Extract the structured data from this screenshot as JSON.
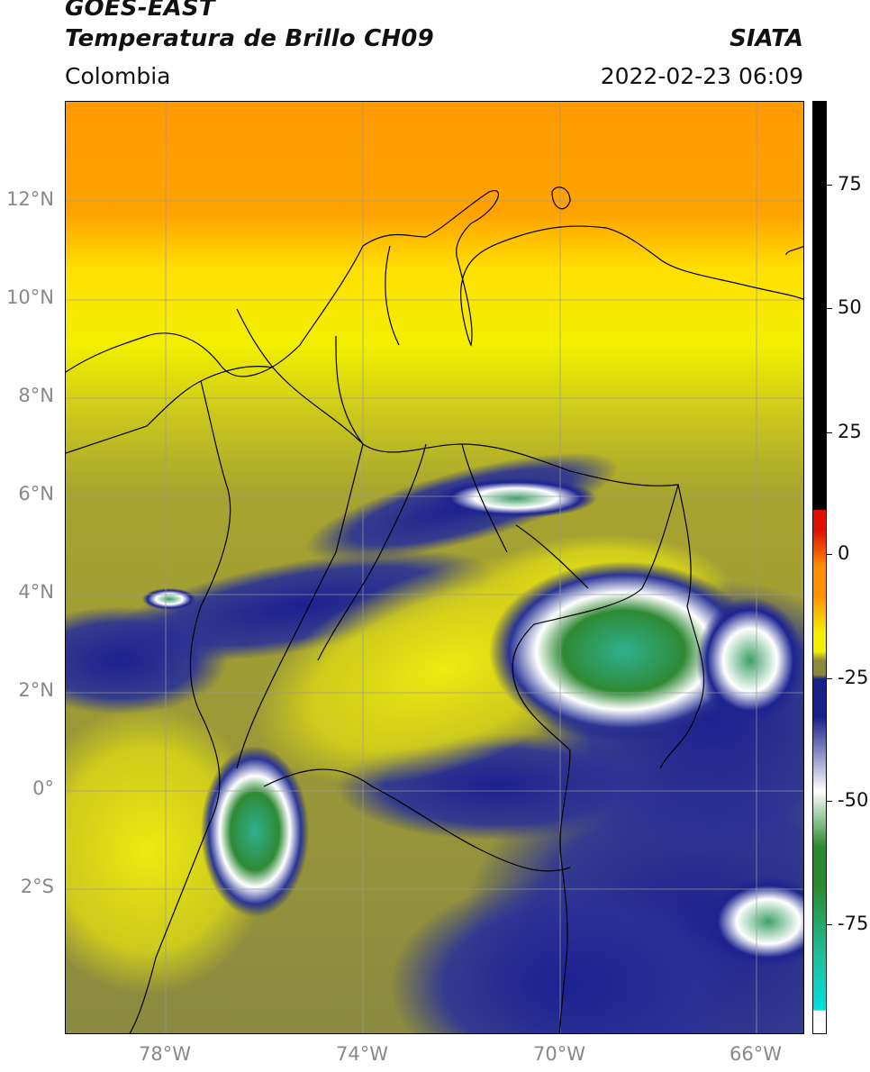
{
  "header": {
    "title_line1": "GOES-EAST",
    "title_line2": "Temperatura de Brillo CH09",
    "region": "Colombia",
    "organization": "SIATA",
    "datetime": "2022-02-23 06:09"
  },
  "map": {
    "latitude_labels": [
      "12°N",
      "10°N",
      "8°N",
      "6°N",
      "4°N",
      "2°N",
      "0°",
      "2°S"
    ],
    "longitude_labels": [
      "78°W",
      "74°W",
      "70°W",
      "66°W"
    ],
    "extent": {
      "lon_min": -80,
      "lon_max": -65,
      "lat_min": -5,
      "lat_max": 14
    },
    "gridlines": true
  },
  "colorbar": {
    "tick_labels": [
      "75",
      "50",
      "25",
      "0",
      "-25",
      "-50",
      "-75"
    ],
    "range": [
      -100,
      90
    ],
    "colors": {
      "black_above": "#000000",
      "red": "#e01000",
      "orange": "#ff9000",
      "yellow": "#f2f000",
      "olive": "#8a8a3a",
      "navy": "#1a1f8a",
      "white": "#ffffff",
      "green": "#2a8a30",
      "teal": "#20c0a0",
      "cyan": "#00e0e0"
    }
  }
}
